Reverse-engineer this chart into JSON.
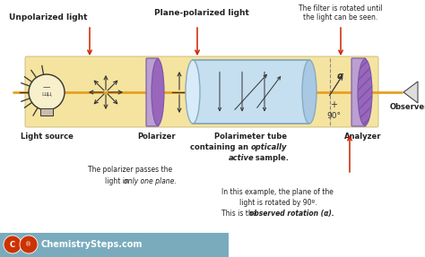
{
  "bg_color": "#FFFFFF",
  "beam_color": "#F5E4A0",
  "orange_color": "#E8A020",
  "purple_dark": "#7755AA",
  "purple_mid": "#9966BB",
  "purple_light": "#BBA0D0",
  "tube_fill": "#C5DFF0",
  "tube_edge": "#8AABBF",
  "dark": "#222222",
  "red_col": "#CC2200",
  "dashed_col": "#888888",
  "footer_bg": "#7AABBD",
  "title_unpolarized": "Unpolarized light",
  "title_plane_pol": "Plane-polarized light",
  "title_filter": "The filter is rotated until\nthe light can be seen.",
  "lbl_light_src": "Light source",
  "lbl_polarizer": "Polarizer",
  "lbl_tube1": "Polarimeter tube",
  "lbl_tube2": "containing an ",
  "lbl_tube_it": "optically",
  "lbl_tube3": "active",
  "lbl_tube4": " sample.",
  "lbl_analyzer": "Analyzer",
  "lbl_observer": "Observer",
  "note1": "The polarizer passes the",
  "note2": "light in ",
  "note2_it": "only one plane.",
  "br1": "In this example, the plane of the",
  "br2": "light is rotated by 90º.",
  "br3": "This is the ",
  "br3_bi": "observed rotation (α).",
  "footer_text": "ChemistrySteps.com"
}
